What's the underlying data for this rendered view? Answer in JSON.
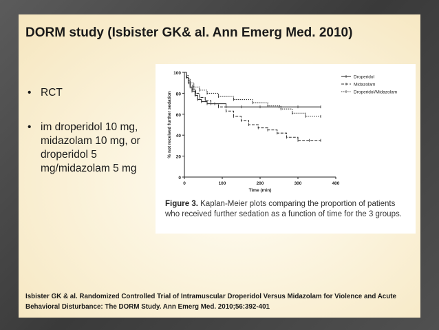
{
  "slide": {
    "title": "DORM study (Isbister GK& al. Ann Emerg Med. 2010)",
    "bullets": [
      {
        "text": "RCT"
      },
      {
        "text": "im droperidol 10 mg, midazolam 10 mg, or droperidol 5 mg/midazolam 5 mg"
      }
    ],
    "bullet_symbol": "•",
    "reference": "Isbister GK & al. Randomized Controlled Trial of Intramuscular Droperidol Versus Midazolam for Violence and Acute Behavioral Disturbance: The DORM Study. Ann Emerg Med. 2010;56:392-401"
  },
  "figure": {
    "caption_label": "Figure 3.",
    "caption_text": " Kaplan-Meier plots comparing the proportion of patients who received further sedation as a function of time for the 3 groups."
  },
  "chart_data": {
    "type": "line",
    "xlabel": "Time (min)",
    "ylabel": "% not received further sedation",
    "xlim": [
      0,
      400
    ],
    "ylim": [
      0,
      100
    ],
    "x_ticks": [
      "0",
      "100",
      "200",
      "300",
      "400"
    ],
    "y_ticks": [
      "0",
      "20",
      "40",
      "60",
      "80",
      "100"
    ],
    "legend_position": "top-right",
    "series": [
      {
        "name": "Droperidol",
        "style": "solid",
        "color": "#333333",
        "points": [
          [
            0,
            100
          ],
          [
            5,
            95
          ],
          [
            10,
            90
          ],
          [
            15,
            86
          ],
          [
            20,
            82
          ],
          [
            28,
            78
          ],
          [
            35,
            74
          ],
          [
            45,
            72
          ],
          [
            60,
            70
          ],
          [
            80,
            70
          ],
          [
            110,
            67
          ],
          [
            150,
            67
          ],
          [
            200,
            67
          ],
          [
            250,
            67
          ],
          [
            300,
            67
          ],
          [
            360,
            67
          ]
        ]
      },
      {
        "name": "Midazolam",
        "style": "dashed",
        "color": "#333333",
        "points": [
          [
            0,
            100
          ],
          [
            5,
            96
          ],
          [
            10,
            92
          ],
          [
            15,
            88
          ],
          [
            22,
            84
          ],
          [
            30,
            80
          ],
          [
            40,
            76
          ],
          [
            55,
            73
          ],
          [
            70,
            70
          ],
          [
            90,
            67
          ],
          [
            110,
            63
          ],
          [
            130,
            58
          ],
          [
            150,
            54
          ],
          [
            170,
            50
          ],
          [
            195,
            47
          ],
          [
            220,
            45
          ],
          [
            245,
            42
          ],
          [
            270,
            38
          ],
          [
            300,
            35
          ],
          [
            330,
            35
          ],
          [
            360,
            35
          ]
        ]
      },
      {
        "name": "Droperidol/Midazolam",
        "style": "dotted",
        "color": "#333333",
        "points": [
          [
            0,
            100
          ],
          [
            5,
            97
          ],
          [
            10,
            94
          ],
          [
            15,
            90
          ],
          [
            25,
            86
          ],
          [
            40,
            83
          ],
          [
            60,
            80
          ],
          [
            90,
            77
          ],
          [
            130,
            74
          ],
          [
            180,
            71
          ],
          [
            220,
            68
          ],
          [
            255,
            65
          ],
          [
            285,
            61
          ],
          [
            320,
            58
          ],
          [
            360,
            58
          ]
        ]
      }
    ]
  }
}
